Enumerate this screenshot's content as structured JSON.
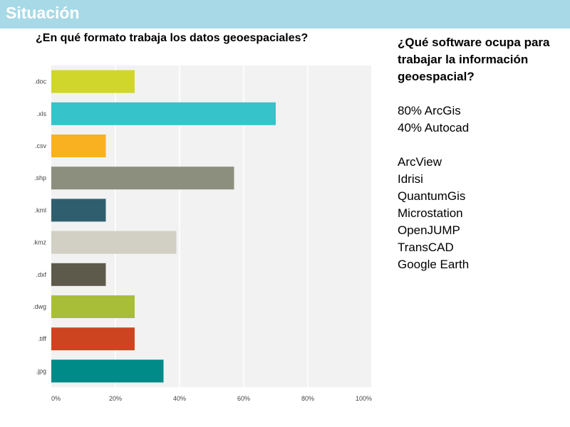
{
  "header": {
    "title": "Situación",
    "color": "#a8d9e6"
  },
  "chart_data": {
    "type": "bar",
    "orientation": "horizontal",
    "title": "¿En qué formato trabaja los datos geoespaciales?",
    "categories": [
      ".doc",
      ".xls",
      ".csv",
      ".shp",
      ".kml",
      ".kmz",
      ".dxf",
      ".dwg",
      ".tiff",
      ".jpg"
    ],
    "values": [
      26,
      70,
      17,
      57,
      17,
      39,
      17,
      26,
      26,
      35
    ],
    "colors": [
      "#d0d62b",
      "#36c3c9",
      "#f9b021",
      "#8c8f7e",
      "#2f5f6e",
      "#d2d0c4",
      "#5d5a4b",
      "#a8be38",
      "#cc4520",
      "#008a88"
    ],
    "xticks": [
      "0%",
      "20%",
      "40%",
      "60%",
      "80%",
      "100%"
    ],
    "xlim": [
      0,
      100
    ],
    "grid": true
  },
  "side": {
    "question": "¿Qué software ocupa para trabajar la información geoespacial?",
    "stats": [
      "80% ArcGis",
      "40% Autocad"
    ],
    "others": [
      "ArcView",
      "Idrisi",
      "QuantumGis",
      "Microstation",
      "OpenJUMP",
      "TransCAD",
      "Google Earth"
    ]
  }
}
